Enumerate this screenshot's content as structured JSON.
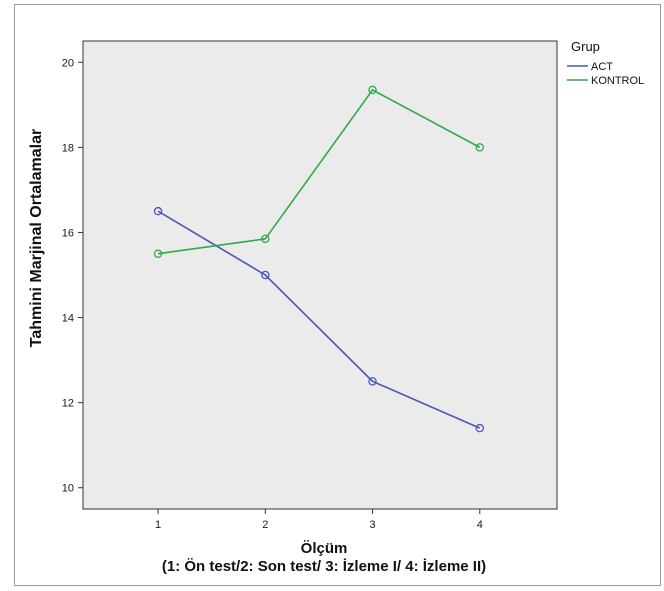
{
  "chart_data": {
    "type": "line",
    "xlabel_line1": "Ölçüm",
    "xlabel_line2": "(1: Ön test/2: Son test/ 3: İzleme I/ 4: İzleme II)",
    "ylabel": "Tahmini Marjinal Ortalamalar",
    "x": [
      1,
      2,
      3,
      4
    ],
    "xlim": [
      0.3,
      4.72
    ],
    "ylim": [
      9.5,
      20.5
    ],
    "yticks": [
      10,
      12,
      14,
      16,
      18,
      20
    ],
    "grid": false,
    "legend_title": "Grup",
    "legend_position": "right",
    "series": [
      {
        "name": "ACT",
        "color": "#4a56b8",
        "values": [
          16.5,
          15.0,
          12.5,
          11.4
        ]
      },
      {
        "name": "KONTROL",
        "color": "#2eab48",
        "values": [
          15.5,
          15.85,
          19.35,
          18.0
        ]
      }
    ]
  },
  "colors": {
    "plot_background": "#ebebeb",
    "axis": "#333333"
  }
}
